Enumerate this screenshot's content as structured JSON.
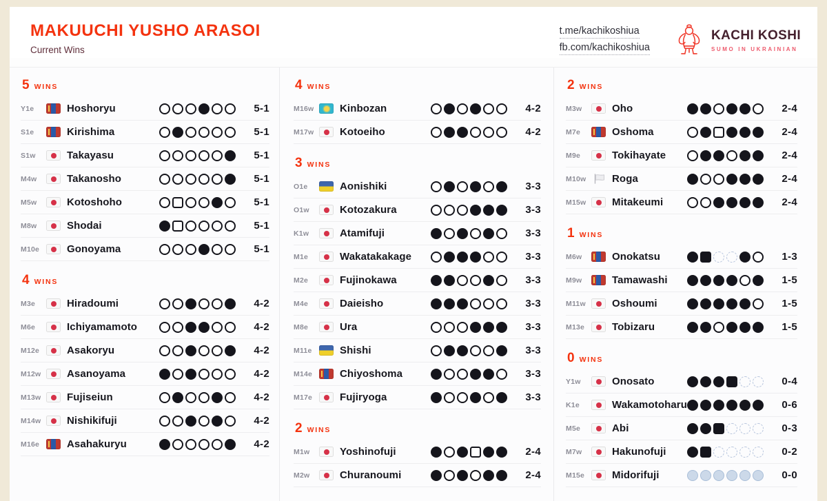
{
  "header": {
    "title": "MAKUUCHI YUSHO ARASOI",
    "subtitle": "Current Wins",
    "links": [
      {
        "label": "t.me/kachikoshiua"
      },
      {
        "label": "fb.com/kachikoshiua"
      }
    ],
    "brand": {
      "name": "KACHI KOSHI",
      "tagline": "SUMO IN UKRAINIAN"
    }
  },
  "marks_legend": {
    "W": "win-open-circle",
    "L": "loss-filled-circle",
    "Q": "fusen-win-open-square",
    "X": "fusen-loss-filled-square",
    "A": "absent-dashed-circle",
    "P": "not-played-blue-circle"
  },
  "colors": {
    "accent_red": "#f4330f",
    "brand_dark": "#45212e",
    "brand_pink": "#ed5b6d",
    "frame_cream": "#f0e9d8",
    "text_dark": "#17171e",
    "rank_gray": "#8e8e98",
    "pending_blue": "#ccd9e9"
  },
  "columns": [
    {
      "sections": [
        {
          "wins": "5",
          "label": "WINS",
          "rows": [
            {
              "rank": "Y1e",
              "flag": "mn",
              "name": "Hoshoryu",
              "marks": "WWWLWW",
              "score": "5-1"
            },
            {
              "rank": "S1e",
              "flag": "mn",
              "name": "Kirishima",
              "marks": "WLWWWW",
              "score": "5-1"
            },
            {
              "rank": "S1w",
              "flag": "jp",
              "name": "Takayasu",
              "marks": "WWWWWL",
              "score": "5-1"
            },
            {
              "rank": "M4w",
              "flag": "jp",
              "name": "Takanosho",
              "marks": "WWWWWL",
              "score": "5-1"
            },
            {
              "rank": "M5w",
              "flag": "jp",
              "name": "Kotoshoho",
              "marks": "WQWWLW",
              "score": "5-1"
            },
            {
              "rank": "M8w",
              "flag": "jp",
              "name": "Shodai",
              "marks": "LQWWWW",
              "score": "5-1"
            },
            {
              "rank": "M10e",
              "flag": "jp",
              "name": "Gonoyama",
              "marks": "WWWLWW",
              "score": "5-1"
            }
          ]
        },
        {
          "wins": "4",
          "label": "WINS",
          "rows": [
            {
              "rank": "M3e",
              "flag": "jp",
              "name": "Hiradoumi",
              "marks": "WWLWWL",
              "score": "4-2"
            },
            {
              "rank": "M6e",
              "flag": "jp",
              "name": "Ichiyamamoto",
              "marks": "WWLLWW",
              "score": "4-2"
            },
            {
              "rank": "M12e",
              "flag": "jp",
              "name": "Asakoryu",
              "marks": "WWLWWL",
              "score": "4-2"
            },
            {
              "rank": "M12w",
              "flag": "jp",
              "name": "Asanoyama",
              "marks": "LWLWWW",
              "score": "4-2"
            },
            {
              "rank": "M13w",
              "flag": "jp",
              "name": "Fujiseiun",
              "marks": "WLWWLW",
              "score": "4-2"
            },
            {
              "rank": "M14w",
              "flag": "jp",
              "name": "Nishikifuji",
              "marks": "WWLWLW",
              "score": "4-2"
            },
            {
              "rank": "M16e",
              "flag": "mn",
              "name": "Asahakuryu",
              "marks": "LWWWWL",
              "score": "4-2"
            }
          ]
        }
      ]
    },
    {
      "sections": [
        {
          "wins": "4",
          "label": "WINS",
          "rows": [
            {
              "rank": "M16w",
              "flag": "kz",
              "name": "Kinbozan",
              "marks": "WLWLWW",
              "score": "4-2"
            },
            {
              "rank": "M17w",
              "flag": "jp",
              "name": "Kotoeiho",
              "marks": "WLLWWW",
              "score": "4-2"
            }
          ]
        },
        {
          "wins": "3",
          "label": "WINS",
          "rows": [
            {
              "rank": "O1e",
              "flag": "ua",
              "name": "Aonishiki",
              "marks": "WLWLWL",
              "score": "3-3"
            },
            {
              "rank": "O1w",
              "flag": "jp",
              "name": "Kotozakura",
              "marks": "WWWLLL",
              "score": "3-3"
            },
            {
              "rank": "K1w",
              "flag": "jp",
              "name": "Atamifuji",
              "marks": "LWLWLW",
              "score": "3-3"
            },
            {
              "rank": "M1e",
              "flag": "jp",
              "name": "Wakatakakage",
              "marks": "WLLLWW",
              "score": "3-3"
            },
            {
              "rank": "M2e",
              "flag": "jp",
              "name": "Fujinokawa",
              "marks": "LLWWLW",
              "score": "3-3"
            },
            {
              "rank": "M4e",
              "flag": "jp",
              "name": "Daieisho",
              "marks": "LLLWWW",
              "score": "3-3"
            },
            {
              "rank": "M8e",
              "flag": "jp",
              "name": "Ura",
              "marks": "WWWLLL",
              "score": "3-3"
            },
            {
              "rank": "M11e",
              "flag": "ua",
              "name": "Shishi",
              "marks": "WLLWWL",
              "score": "3-3"
            },
            {
              "rank": "M14e",
              "flag": "mn",
              "name": "Chiyoshoma",
              "marks": "LWWLLW",
              "score": "3-3"
            },
            {
              "rank": "M17e",
              "flag": "jp",
              "name": "Fujiryoga",
              "marks": "LWWLWL",
              "score": "3-3"
            }
          ]
        },
        {
          "wins": "2",
          "label": "WINS",
          "rows": [
            {
              "rank": "M1w",
              "flag": "jp",
              "name": "Yoshinofuji",
              "marks": "LWLQLL",
              "score": "2-4"
            },
            {
              "rank": "M2w",
              "flag": "jp",
              "name": "Churanoumi",
              "marks": "LWLWLL",
              "score": "2-4"
            }
          ]
        }
      ]
    },
    {
      "sections": [
        {
          "wins": "2",
          "label": "WINS",
          "rows": [
            {
              "rank": "M3w",
              "flag": "jp",
              "name": "Oho",
              "marks": "LLWLLW",
              "score": "2-4"
            },
            {
              "rank": "M7e",
              "flag": "mn",
              "name": "Oshoma",
              "marks": "WLQLLL",
              "score": "2-4"
            },
            {
              "rank": "M9e",
              "flag": "jp",
              "name": "Tokihayate",
              "marks": "WLLWLL",
              "score": "2-4"
            },
            {
              "rank": "M10w",
              "flag": "white",
              "name": "Roga",
              "marks": "LWWLLL",
              "score": "2-4"
            },
            {
              "rank": "M15w",
              "flag": "jp",
              "name": "Mitakeumi",
              "marks": "WWLLLL",
              "score": "2-4"
            }
          ]
        },
        {
          "wins": "1",
          "label": "WINS",
          "rows": [
            {
              "rank": "M6w",
              "flag": "mn",
              "name": "Onokatsu",
              "marks": "LXAALW",
              "score": "1-3"
            },
            {
              "rank": "M9w",
              "flag": "mn",
              "name": "Tamawashi",
              "marks": "LLLLWL",
              "score": "1-5"
            },
            {
              "rank": "M11w",
              "flag": "jp",
              "name": "Oshoumi",
              "marks": "LLLLLW",
              "score": "1-5"
            },
            {
              "rank": "M13e",
              "flag": "jp",
              "name": "Tobizaru",
              "marks": "LLWLLL",
              "score": "1-5"
            }
          ]
        },
        {
          "wins": "0",
          "label": "WINS",
          "rows": [
            {
              "rank": "Y1w",
              "flag": "jp",
              "name": "Onosato",
              "marks": "LLLXAA",
              "score": "0-4"
            },
            {
              "rank": "K1e",
              "flag": "jp",
              "name": "Wakamotoharu",
              "marks": "LLLLLL",
              "score": "0-6"
            },
            {
              "rank": "M5e",
              "flag": "jp",
              "name": "Abi",
              "marks": "LLXAAA",
              "score": "0-3"
            },
            {
              "rank": "M7w",
              "flag": "jp",
              "name": "Hakunofuji",
              "marks": "LXAAAA",
              "score": "0-2"
            },
            {
              "rank": "M15e",
              "flag": "jp",
              "name": "Midorifuji",
              "marks": "PPPPPP",
              "score": "0-0"
            }
          ]
        }
      ]
    }
  ]
}
